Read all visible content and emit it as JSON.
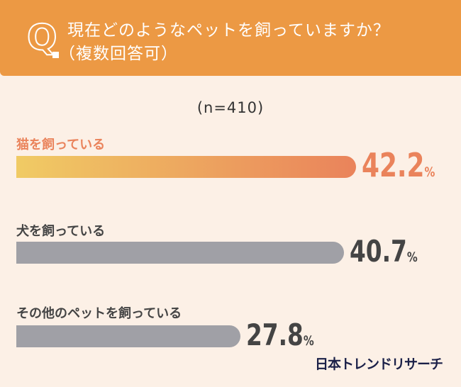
{
  "header": {
    "q_letter": "Q",
    "title_line1": "現在どのようなペットを飼っていますか？",
    "title_line2": "（複数回答可）"
  },
  "colors": {
    "header": "#ec9944",
    "background": "#fcf0e6",
    "highlight_start": "#f0cb64",
    "highlight_end": "#ea835b",
    "highlight_text": "#ea835b",
    "default_bar": "#a0a0a6"
  },
  "chart_data": {
    "type": "bar",
    "orientation": "horizontal",
    "title": "現在どのようなペットを飼っていますか？（複数回答可）",
    "subtitle": "(n=410)",
    "categories": [
      "猫を飼っている",
      "犬を飼っている",
      "その他のペットを飼っている"
    ],
    "values": [
      42.2,
      40.7,
      27.8
    ],
    "value_labels": [
      "42.2",
      "40.7",
      "27.8"
    ],
    "unit": "%"
  },
  "logo": "日本トレンドリサーチ"
}
